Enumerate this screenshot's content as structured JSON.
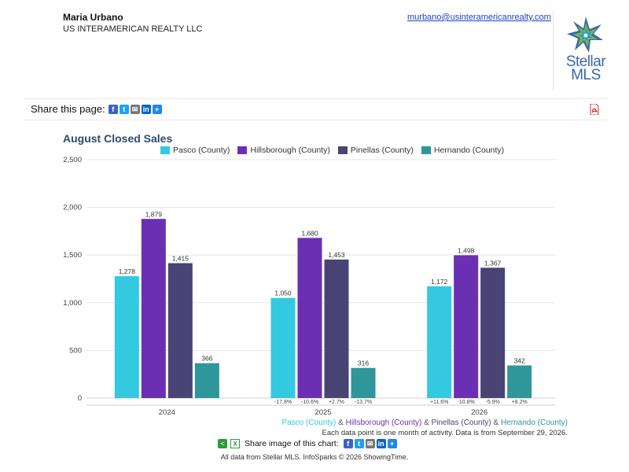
{
  "agent": {
    "name": "Maria Urbano",
    "company": "US INTERAMERICAN REALTY LLC",
    "email": "murbano@usinteramericanrealty.com"
  },
  "logo": {
    "line1": "Stellar",
    "line2": "MLS"
  },
  "share": {
    "label": "Share this page:"
  },
  "chart_data": {
    "type": "bar",
    "title": "August Closed Sales",
    "categories": [
      "2024",
      "2025",
      "2026"
    ],
    "series": [
      {
        "name": "Pasco (County)",
        "color": "#33c9e1",
        "values": [
          1278,
          1050,
          1172
        ],
        "changes": [
          "",
          "-17.8%",
          "+11.6%"
        ]
      },
      {
        "name": "Hillsborough (County)",
        "color": "#6b2fb3",
        "values": [
          1879,
          1680,
          1498
        ],
        "changes": [
          "",
          "-10.6%",
          "-10.8%"
        ]
      },
      {
        "name": "Pinellas (County)",
        "color": "#4a4475",
        "values": [
          1415,
          1453,
          1367
        ],
        "changes": [
          "",
          "+2.7%",
          "-5.9%"
        ]
      },
      {
        "name": "Hernando (County)",
        "color": "#2f9699",
        "values": [
          366,
          316,
          342
        ],
        "changes": [
          "",
          "-13.7%",
          "+8.2%"
        ]
      }
    ],
    "value_labels": [
      [
        "1,278",
        "1,050",
        "1,172"
      ],
      [
        "1,879",
        "1,680",
        "1,498"
      ],
      [
        "1,415",
        "1,453",
        "1,367"
      ],
      [
        "366",
        "316",
        "342"
      ]
    ],
    "ylim": [
      0,
      2500
    ],
    "yticks": [
      0,
      500,
      1000,
      1500,
      2000,
      2500
    ],
    "ytick_labels": [
      "0",
      "500",
      "1,000",
      "1,500",
      "2,000",
      "2,500"
    ],
    "grid": true,
    "legend_position": "top"
  },
  "footer": {
    "series_names": [
      "Pasco (County)",
      "Hillsborough (County)",
      "Pinellas (County)",
      "Hernando (County)"
    ],
    "connector": " & ",
    "activity_note": "Each data point is one month of activity. Data is from September 29, 2026.",
    "share_image_label": "Share image of this chart:",
    "credits": "All data from Stellar MLS. InfoSparks © 2026 ShowingTime."
  },
  "icons": {
    "facebook": "f",
    "twitter": "t",
    "email": "✉",
    "linkedin": "in",
    "plus": "+",
    "share": "<",
    "excel": "X",
    "pdf": "pdf-icon"
  }
}
